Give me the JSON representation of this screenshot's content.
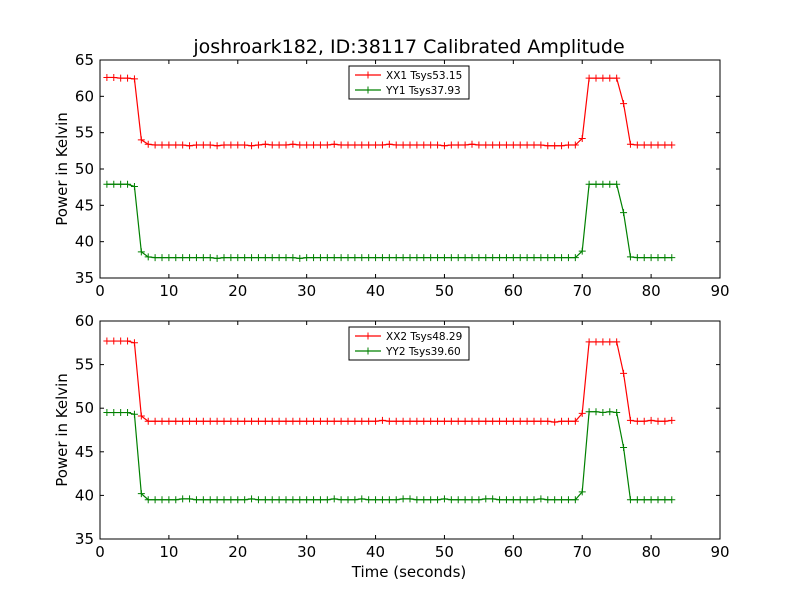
{
  "chart_data": [
    {
      "type": "line",
      "title": "joshroark182, ID:38117 Calibrated Amplitude",
      "xlabel": "",
      "ylabel": "Power in Kelvin",
      "xlim": [
        0,
        90
      ],
      "ylim": [
        35,
        65
      ],
      "xticks": [
        "0",
        "10",
        "20",
        "30",
        "40",
        "50",
        "60",
        "70",
        "80",
        "90"
      ],
      "yticks": [
        "35",
        "40",
        "45",
        "50",
        "55",
        "60",
        "65"
      ],
      "legend_position": "top-center",
      "series": [
        {
          "name": "XX1 Tsys53.15",
          "color": "#ff0000",
          "x": [
            1,
            2,
            3,
            4,
            5,
            6,
            7,
            8,
            9,
            10,
            11,
            12,
            13,
            14,
            15,
            16,
            17,
            18,
            19,
            20,
            21,
            22,
            23,
            24,
            25,
            26,
            27,
            28,
            29,
            30,
            31,
            32,
            33,
            34,
            35,
            36,
            37,
            38,
            39,
            40,
            41,
            42,
            43,
            44,
            45,
            46,
            47,
            48,
            49,
            50,
            51,
            52,
            53,
            54,
            55,
            56,
            57,
            58,
            59,
            60,
            61,
            62,
            63,
            64,
            65,
            66,
            67,
            68,
            69,
            70,
            71,
            72,
            73,
            74,
            75,
            76,
            77,
            78,
            79,
            80,
            81,
            82,
            83
          ],
          "y": [
            62.6,
            62.6,
            62.5,
            62.5,
            62.4,
            54.0,
            53.4,
            53.3,
            53.3,
            53.3,
            53.3,
            53.3,
            53.2,
            53.3,
            53.3,
            53.3,
            53.2,
            53.3,
            53.3,
            53.3,
            53.3,
            53.2,
            53.3,
            53.4,
            53.3,
            53.3,
            53.3,
            53.4,
            53.3,
            53.3,
            53.3,
            53.3,
            53.3,
            53.4,
            53.3,
            53.3,
            53.3,
            53.3,
            53.3,
            53.3,
            53.3,
            53.4,
            53.3,
            53.3,
            53.3,
            53.3,
            53.3,
            53.3,
            53.3,
            53.2,
            53.3,
            53.3,
            53.3,
            53.4,
            53.3,
            53.3,
            53.3,
            53.3,
            53.3,
            53.3,
            53.3,
            53.3,
            53.3,
            53.3,
            53.2,
            53.2,
            53.2,
            53.3,
            53.3,
            54.2,
            62.5,
            62.5,
            62.5,
            62.5,
            62.5,
            59.0,
            53.4,
            53.3,
            53.3,
            53.3,
            53.3,
            53.3,
            53.3
          ]
        },
        {
          "name": "YY1 Tsys37.93",
          "color": "#008000",
          "x": [
            1,
            2,
            3,
            4,
            5,
            6,
            7,
            8,
            9,
            10,
            11,
            12,
            13,
            14,
            15,
            16,
            17,
            18,
            19,
            20,
            21,
            22,
            23,
            24,
            25,
            26,
            27,
            28,
            29,
            30,
            31,
            32,
            33,
            34,
            35,
            36,
            37,
            38,
            39,
            40,
            41,
            42,
            43,
            44,
            45,
            46,
            47,
            48,
            49,
            50,
            51,
            52,
            53,
            54,
            55,
            56,
            57,
            58,
            59,
            60,
            61,
            62,
            63,
            64,
            65,
            66,
            67,
            68,
            69,
            70,
            71,
            72,
            73,
            74,
            75,
            76,
            77,
            78,
            79,
            80,
            81,
            82,
            83
          ],
          "y": [
            47.9,
            47.9,
            47.9,
            47.9,
            47.6,
            38.6,
            37.9,
            37.8,
            37.8,
            37.8,
            37.8,
            37.8,
            37.8,
            37.8,
            37.8,
            37.8,
            37.7,
            37.8,
            37.8,
            37.8,
            37.8,
            37.8,
            37.8,
            37.8,
            37.8,
            37.8,
            37.8,
            37.8,
            37.7,
            37.8,
            37.8,
            37.8,
            37.8,
            37.8,
            37.8,
            37.8,
            37.8,
            37.8,
            37.8,
            37.8,
            37.8,
            37.8,
            37.8,
            37.8,
            37.8,
            37.8,
            37.8,
            37.8,
            37.8,
            37.8,
            37.8,
            37.8,
            37.8,
            37.8,
            37.8,
            37.8,
            37.8,
            37.8,
            37.8,
            37.8,
            37.8,
            37.8,
            37.8,
            37.8,
            37.8,
            37.8,
            37.8,
            37.8,
            37.8,
            38.7,
            47.9,
            47.9,
            47.9,
            47.9,
            47.9,
            44.0,
            37.9,
            37.8,
            37.8,
            37.8,
            37.8,
            37.8,
            37.8
          ]
        }
      ]
    },
    {
      "type": "line",
      "title": "",
      "xlabel": "Time (seconds)",
      "ylabel": "Power in Kelvin",
      "xlim": [
        0,
        90
      ],
      "ylim": [
        35,
        60
      ],
      "xticks": [
        "0",
        "10",
        "20",
        "30",
        "40",
        "50",
        "60",
        "70",
        "80",
        "90"
      ],
      "yticks": [
        "35",
        "40",
        "45",
        "50",
        "55",
        "60"
      ],
      "legend_position": "top-center",
      "series": [
        {
          "name": "XX2 Tsys48.29",
          "color": "#ff0000",
          "x": [
            1,
            2,
            3,
            4,
            5,
            6,
            7,
            8,
            9,
            10,
            11,
            12,
            13,
            14,
            15,
            16,
            17,
            18,
            19,
            20,
            21,
            22,
            23,
            24,
            25,
            26,
            27,
            28,
            29,
            30,
            31,
            32,
            33,
            34,
            35,
            36,
            37,
            38,
            39,
            40,
            41,
            42,
            43,
            44,
            45,
            46,
            47,
            48,
            49,
            50,
            51,
            52,
            53,
            54,
            55,
            56,
            57,
            58,
            59,
            60,
            61,
            62,
            63,
            64,
            65,
            66,
            67,
            68,
            69,
            70,
            71,
            72,
            73,
            74,
            75,
            76,
            77,
            78,
            79,
            80,
            81,
            82,
            83
          ],
          "y": [
            57.7,
            57.7,
            57.7,
            57.7,
            57.5,
            49.1,
            48.5,
            48.5,
            48.5,
            48.5,
            48.5,
            48.5,
            48.5,
            48.5,
            48.5,
            48.5,
            48.5,
            48.5,
            48.5,
            48.5,
            48.5,
            48.5,
            48.5,
            48.5,
            48.5,
            48.5,
            48.5,
            48.5,
            48.5,
            48.5,
            48.5,
            48.5,
            48.5,
            48.5,
            48.5,
            48.5,
            48.5,
            48.5,
            48.5,
            48.5,
            48.6,
            48.5,
            48.5,
            48.5,
            48.5,
            48.5,
            48.5,
            48.5,
            48.5,
            48.5,
            48.5,
            48.5,
            48.5,
            48.5,
            48.5,
            48.5,
            48.5,
            48.5,
            48.5,
            48.5,
            48.5,
            48.5,
            48.5,
            48.5,
            48.5,
            48.4,
            48.5,
            48.5,
            48.5,
            49.4,
            57.6,
            57.6,
            57.6,
            57.6,
            57.6,
            54.0,
            48.6,
            48.5,
            48.5,
            48.6,
            48.5,
            48.5,
            48.6
          ]
        },
        {
          "name": "YY2 Tsys39.60",
          "color": "#008000",
          "x": [
            1,
            2,
            3,
            4,
            5,
            6,
            7,
            8,
            9,
            10,
            11,
            12,
            13,
            14,
            15,
            16,
            17,
            18,
            19,
            20,
            21,
            22,
            23,
            24,
            25,
            26,
            27,
            28,
            29,
            30,
            31,
            32,
            33,
            34,
            35,
            36,
            37,
            38,
            39,
            40,
            41,
            42,
            43,
            44,
            45,
            46,
            47,
            48,
            49,
            50,
            51,
            52,
            53,
            54,
            55,
            56,
            57,
            58,
            59,
            60,
            61,
            62,
            63,
            64,
            65,
            66,
            67,
            68,
            69,
            70,
            71,
            72,
            73,
            74,
            75,
            76,
            77,
            78,
            79,
            80,
            81,
            82,
            83
          ],
          "y": [
            49.5,
            49.5,
            49.5,
            49.5,
            49.3,
            40.2,
            39.5,
            39.5,
            39.5,
            39.5,
            39.5,
            39.6,
            39.6,
            39.5,
            39.5,
            39.5,
            39.5,
            39.5,
            39.5,
            39.5,
            39.5,
            39.6,
            39.5,
            39.5,
            39.5,
            39.5,
            39.5,
            39.5,
            39.5,
            39.5,
            39.5,
            39.5,
            39.5,
            39.6,
            39.5,
            39.5,
            39.5,
            39.6,
            39.5,
            39.5,
            39.5,
            39.5,
            39.5,
            39.6,
            39.6,
            39.5,
            39.5,
            39.5,
            39.5,
            39.6,
            39.5,
            39.5,
            39.5,
            39.5,
            39.5,
            39.6,
            39.6,
            39.5,
            39.5,
            39.5,
            39.5,
            39.5,
            39.5,
            39.6,
            39.5,
            39.5,
            39.5,
            39.5,
            39.5,
            40.4,
            49.6,
            49.6,
            49.5,
            49.6,
            49.5,
            45.5,
            39.5,
            39.5,
            39.5,
            39.5,
            39.5,
            39.5,
            39.5
          ]
        }
      ]
    }
  ]
}
